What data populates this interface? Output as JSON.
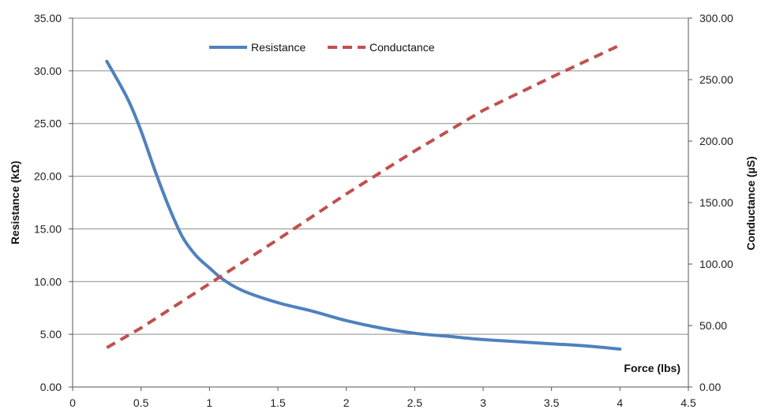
{
  "chart_data": {
    "type": "line",
    "xlabel": "Force (lbs)",
    "ylabel": "Resistance (kΩ)",
    "y2label": "Conductance (µS)",
    "xlim": [
      0,
      4.5
    ],
    "ylim": [
      0,
      35
    ],
    "y2lim": [
      0,
      300
    ],
    "x_ticks": [
      "0",
      "0.5",
      "1",
      "1.5",
      "2",
      "2.5",
      "3",
      "3.5",
      "4",
      "4.5"
    ],
    "y_ticks": [
      "0.00",
      "5.00",
      "10.00",
      "15.00",
      "20.00",
      "25.00",
      "30.00",
      "35.00"
    ],
    "y2_ticks": [
      "0.00",
      "50.00",
      "100.00",
      "150.00",
      "200.00",
      "250.00",
      "300.00"
    ],
    "grid": "horizontal",
    "legend_position": "top",
    "series": [
      {
        "name": "Resistance",
        "axis": "left",
        "color": "#4f81bd",
        "style": "solid",
        "x": [
          0.25,
          0.4,
          0.5,
          0.6,
          0.7,
          0.8,
          0.9,
          1.0,
          1.1,
          1.25,
          1.5,
          1.75,
          2.0,
          2.25,
          2.5,
          2.75,
          3.0,
          3.25,
          3.5,
          3.75,
          4.0
        ],
        "y": [
          30.9,
          27.4,
          24.3,
          20.6,
          17.2,
          14.3,
          12.5,
          11.3,
          10.2,
          9.1,
          8.0,
          7.2,
          6.3,
          5.6,
          5.1,
          4.8,
          4.5,
          4.3,
          4.1,
          3.9,
          3.6
        ]
      },
      {
        "name": "Conductance",
        "axis": "right",
        "color": "#c0504d",
        "style": "dashed",
        "x": [
          0.25,
          0.5,
          1.0,
          1.5,
          2.0,
          2.5,
          3.0,
          3.5,
          4.0
        ],
        "y": [
          32,
          48,
          84,
          120,
          157,
          192,
          225,
          252,
          278
        ]
      }
    ]
  }
}
